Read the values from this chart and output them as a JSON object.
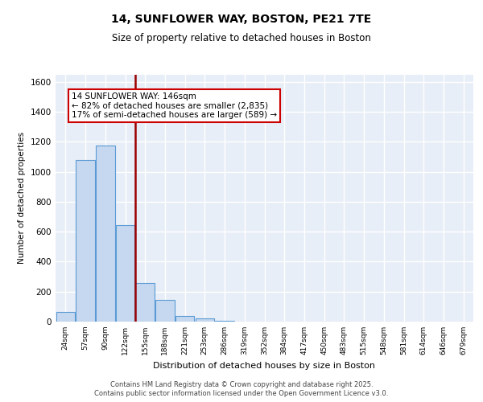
{
  "title": "14, SUNFLOWER WAY, BOSTON, PE21 7TE",
  "subtitle": "Size of property relative to detached houses in Boston",
  "xlabel": "Distribution of detached houses by size in Boston",
  "ylabel": "Number of detached properties",
  "categories": [
    "24sqm",
    "57sqm",
    "90sqm",
    "122sqm",
    "155sqm",
    "188sqm",
    "221sqm",
    "253sqm",
    "286sqm",
    "319sqm",
    "352sqm",
    "384sqm",
    "417sqm",
    "450sqm",
    "483sqm",
    "515sqm",
    "548sqm",
    "581sqm",
    "614sqm",
    "646sqm",
    "679sqm"
  ],
  "values": [
    65,
    1080,
    1175,
    645,
    260,
    145,
    35,
    20,
    8,
    0,
    0,
    0,
    0,
    0,
    0,
    0,
    0,
    0,
    0,
    0,
    0
  ],
  "bar_color": "#c5d8ef",
  "bar_edge_color": "#5b9bd5",
  "vline_color": "#990000",
  "annotation_text": "14 SUNFLOWER WAY: 146sqm\n← 82% of detached houses are smaller (2,835)\n17% of semi-detached houses are larger (589) →",
  "ylim": [
    0,
    1650
  ],
  "yticks": [
    0,
    200,
    400,
    600,
    800,
    1000,
    1200,
    1400,
    1600
  ],
  "bg_color": "#e8eef7",
  "grid_color": "#d0d8e8",
  "footer_line1": "Contains HM Land Registry data © Crown copyright and database right 2025.",
  "footer_line2": "Contains public sector information licensed under the Open Government Licence v3.0."
}
